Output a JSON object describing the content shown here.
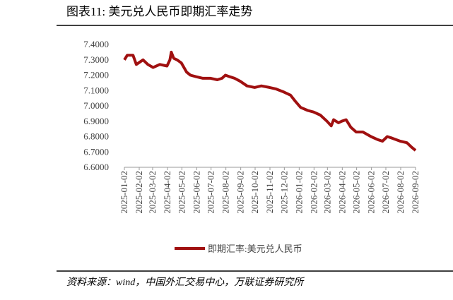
{
  "chart_data": {
    "type": "line",
    "title": "图表11: 美元兑人民币即期汇率走势",
    "source": "资料来源：wind，中国外汇交易中心，万联证券研究所",
    "x": [
      "2025-01-02",
      "2025-01-08",
      "2025-01-20",
      "2025-01-27",
      "2025-02-10",
      "2025-02-20",
      "2025-03-03",
      "2025-03-17",
      "2025-04-01",
      "2025-04-07",
      "2025-04-10",
      "2025-04-15",
      "2025-04-22",
      "2025-05-01",
      "2025-05-12",
      "2025-05-20",
      "2025-06-01",
      "2025-06-15",
      "2025-07-01",
      "2025-07-15",
      "2025-07-25",
      "2025-08-01",
      "2025-08-10",
      "2025-08-20",
      "2025-09-01",
      "2025-09-15",
      "2025-10-01",
      "2025-10-15",
      "2025-11-01",
      "2025-11-15",
      "2025-12-01",
      "2025-12-15",
      "2025-12-25",
      "2026-01-05",
      "2026-01-20",
      "2026-02-01",
      "2026-02-15",
      "2026-03-01",
      "2026-03-10",
      "2026-03-15",
      "2026-03-25",
      "2026-04-01",
      "2026-04-10",
      "2026-04-20",
      "2026-05-01",
      "2026-05-15",
      "2026-06-01",
      "2026-06-15",
      "2026-06-25",
      "2026-07-05",
      "2026-07-15",
      "2026-08-01",
      "2026-08-15",
      "2026-08-25",
      "2026-09-02"
    ],
    "series": [
      {
        "name": "即期汇率:美元兑人民币",
        "color": "#a01010",
        "values": [
          7.3,
          7.33,
          7.33,
          7.27,
          7.3,
          7.27,
          7.25,
          7.27,
          7.26,
          7.3,
          7.35,
          7.31,
          7.3,
          7.28,
          7.22,
          7.2,
          7.19,
          7.18,
          7.18,
          7.17,
          7.18,
          7.2,
          7.19,
          7.18,
          7.16,
          7.13,
          7.12,
          7.13,
          7.12,
          7.11,
          7.09,
          7.07,
          7.03,
          6.99,
          6.97,
          6.96,
          6.94,
          6.9,
          6.87,
          6.91,
          6.89,
          6.9,
          6.91,
          6.86,
          6.83,
          6.83,
          6.8,
          6.78,
          6.77,
          6.8,
          6.79,
          6.77,
          6.76,
          6.73,
          6.71
        ]
      }
    ],
    "xlim": [
      "2025-01-02",
      "2026-09-02"
    ],
    "xticks": [
      "2025-01-02",
      "2025-02-02",
      "2025-03-02",
      "2025-04-02",
      "2025-05-02",
      "2025-06-02",
      "2025-07-02",
      "2025-08-02",
      "2025-09-02",
      "2025-10-02",
      "2025-11-02",
      "2025-12-02",
      "2026-01-02",
      "2026-02-02",
      "2026-03-02",
      "2026-04-02",
      "2026-05-02",
      "2026-06-02",
      "2026-07-02",
      "2026-08-02",
      "2026-09-02"
    ],
    "ylim": [
      6.6,
      7.4
    ],
    "yticks": [
      {
        "value": 6.6,
        "label": "6.6000"
      },
      {
        "value": 6.7,
        "label": "6.7000"
      },
      {
        "value": 6.8,
        "label": "6.8000"
      },
      {
        "value": 6.9,
        "label": "6.9000"
      },
      {
        "value": 7.0,
        "label": "7.0000"
      },
      {
        "value": 7.1,
        "label": "7.1000"
      },
      {
        "value": 7.2,
        "label": "7.2000"
      },
      {
        "value": 7.3,
        "label": "7.3000"
      },
      {
        "value": 7.4,
        "label": "7.4000"
      }
    ]
  }
}
